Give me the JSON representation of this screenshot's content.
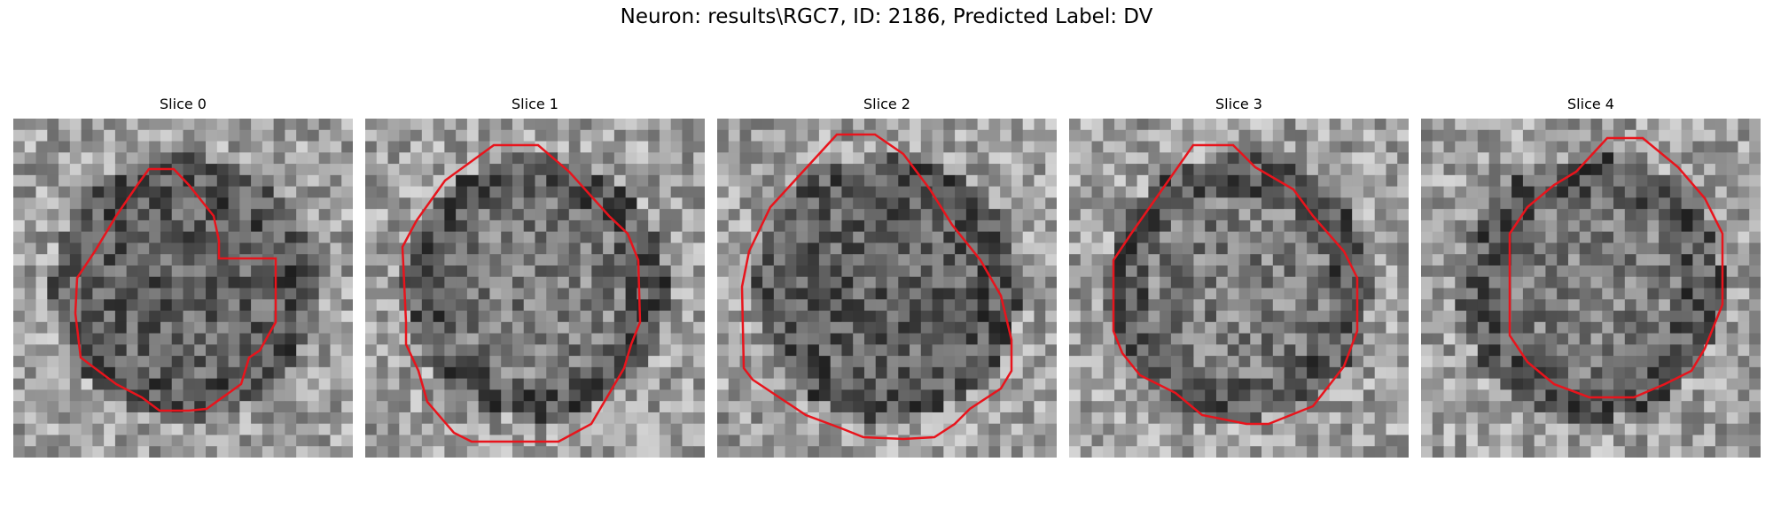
{
  "figure": {
    "title": "Neuron: results\\RGC7, ID: 2186, Predicted Label: DV"
  },
  "panels": [
    {
      "title": "Slice 0",
      "seed": 11,
      "dark_center": true
    },
    {
      "title": "Slice 1",
      "seed": 23,
      "dark_center": false
    },
    {
      "title": "Slice 2",
      "seed": 37,
      "dark_center": true
    },
    {
      "title": "Slice 3",
      "seed": 41,
      "dark_center": false
    },
    {
      "title": "Slice 4",
      "seed": 59,
      "dark_center": false
    }
  ],
  "contour_color": "#e8141c"
}
